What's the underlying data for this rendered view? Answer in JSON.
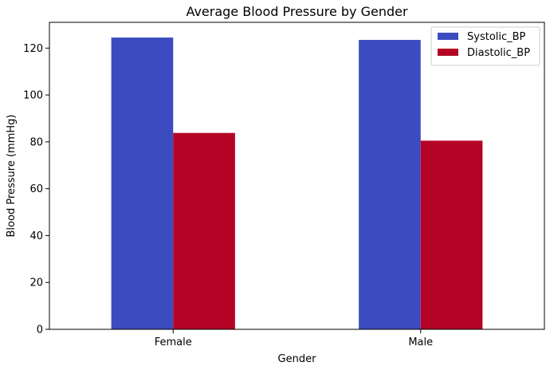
{
  "chart_data": {
    "type": "bar",
    "title": "Average Blood Pressure by Gender",
    "xlabel": "Gender",
    "ylabel": "Blood Pressure (mmHg)",
    "categories": [
      "Female",
      "Male"
    ],
    "series": [
      {
        "name": "Systolic_BP",
        "color": "#3b4cc0",
        "values": [
          124.5,
          123.5
        ]
      },
      {
        "name": "Diastolic_BP",
        "color": "#b40426",
        "values": [
          83.8,
          80.5
        ]
      }
    ],
    "ylim": [
      0,
      131
    ],
    "yticks": [
      0,
      20,
      40,
      60,
      80,
      100,
      120
    ],
    "grid": false,
    "legend_position": "top-right"
  }
}
